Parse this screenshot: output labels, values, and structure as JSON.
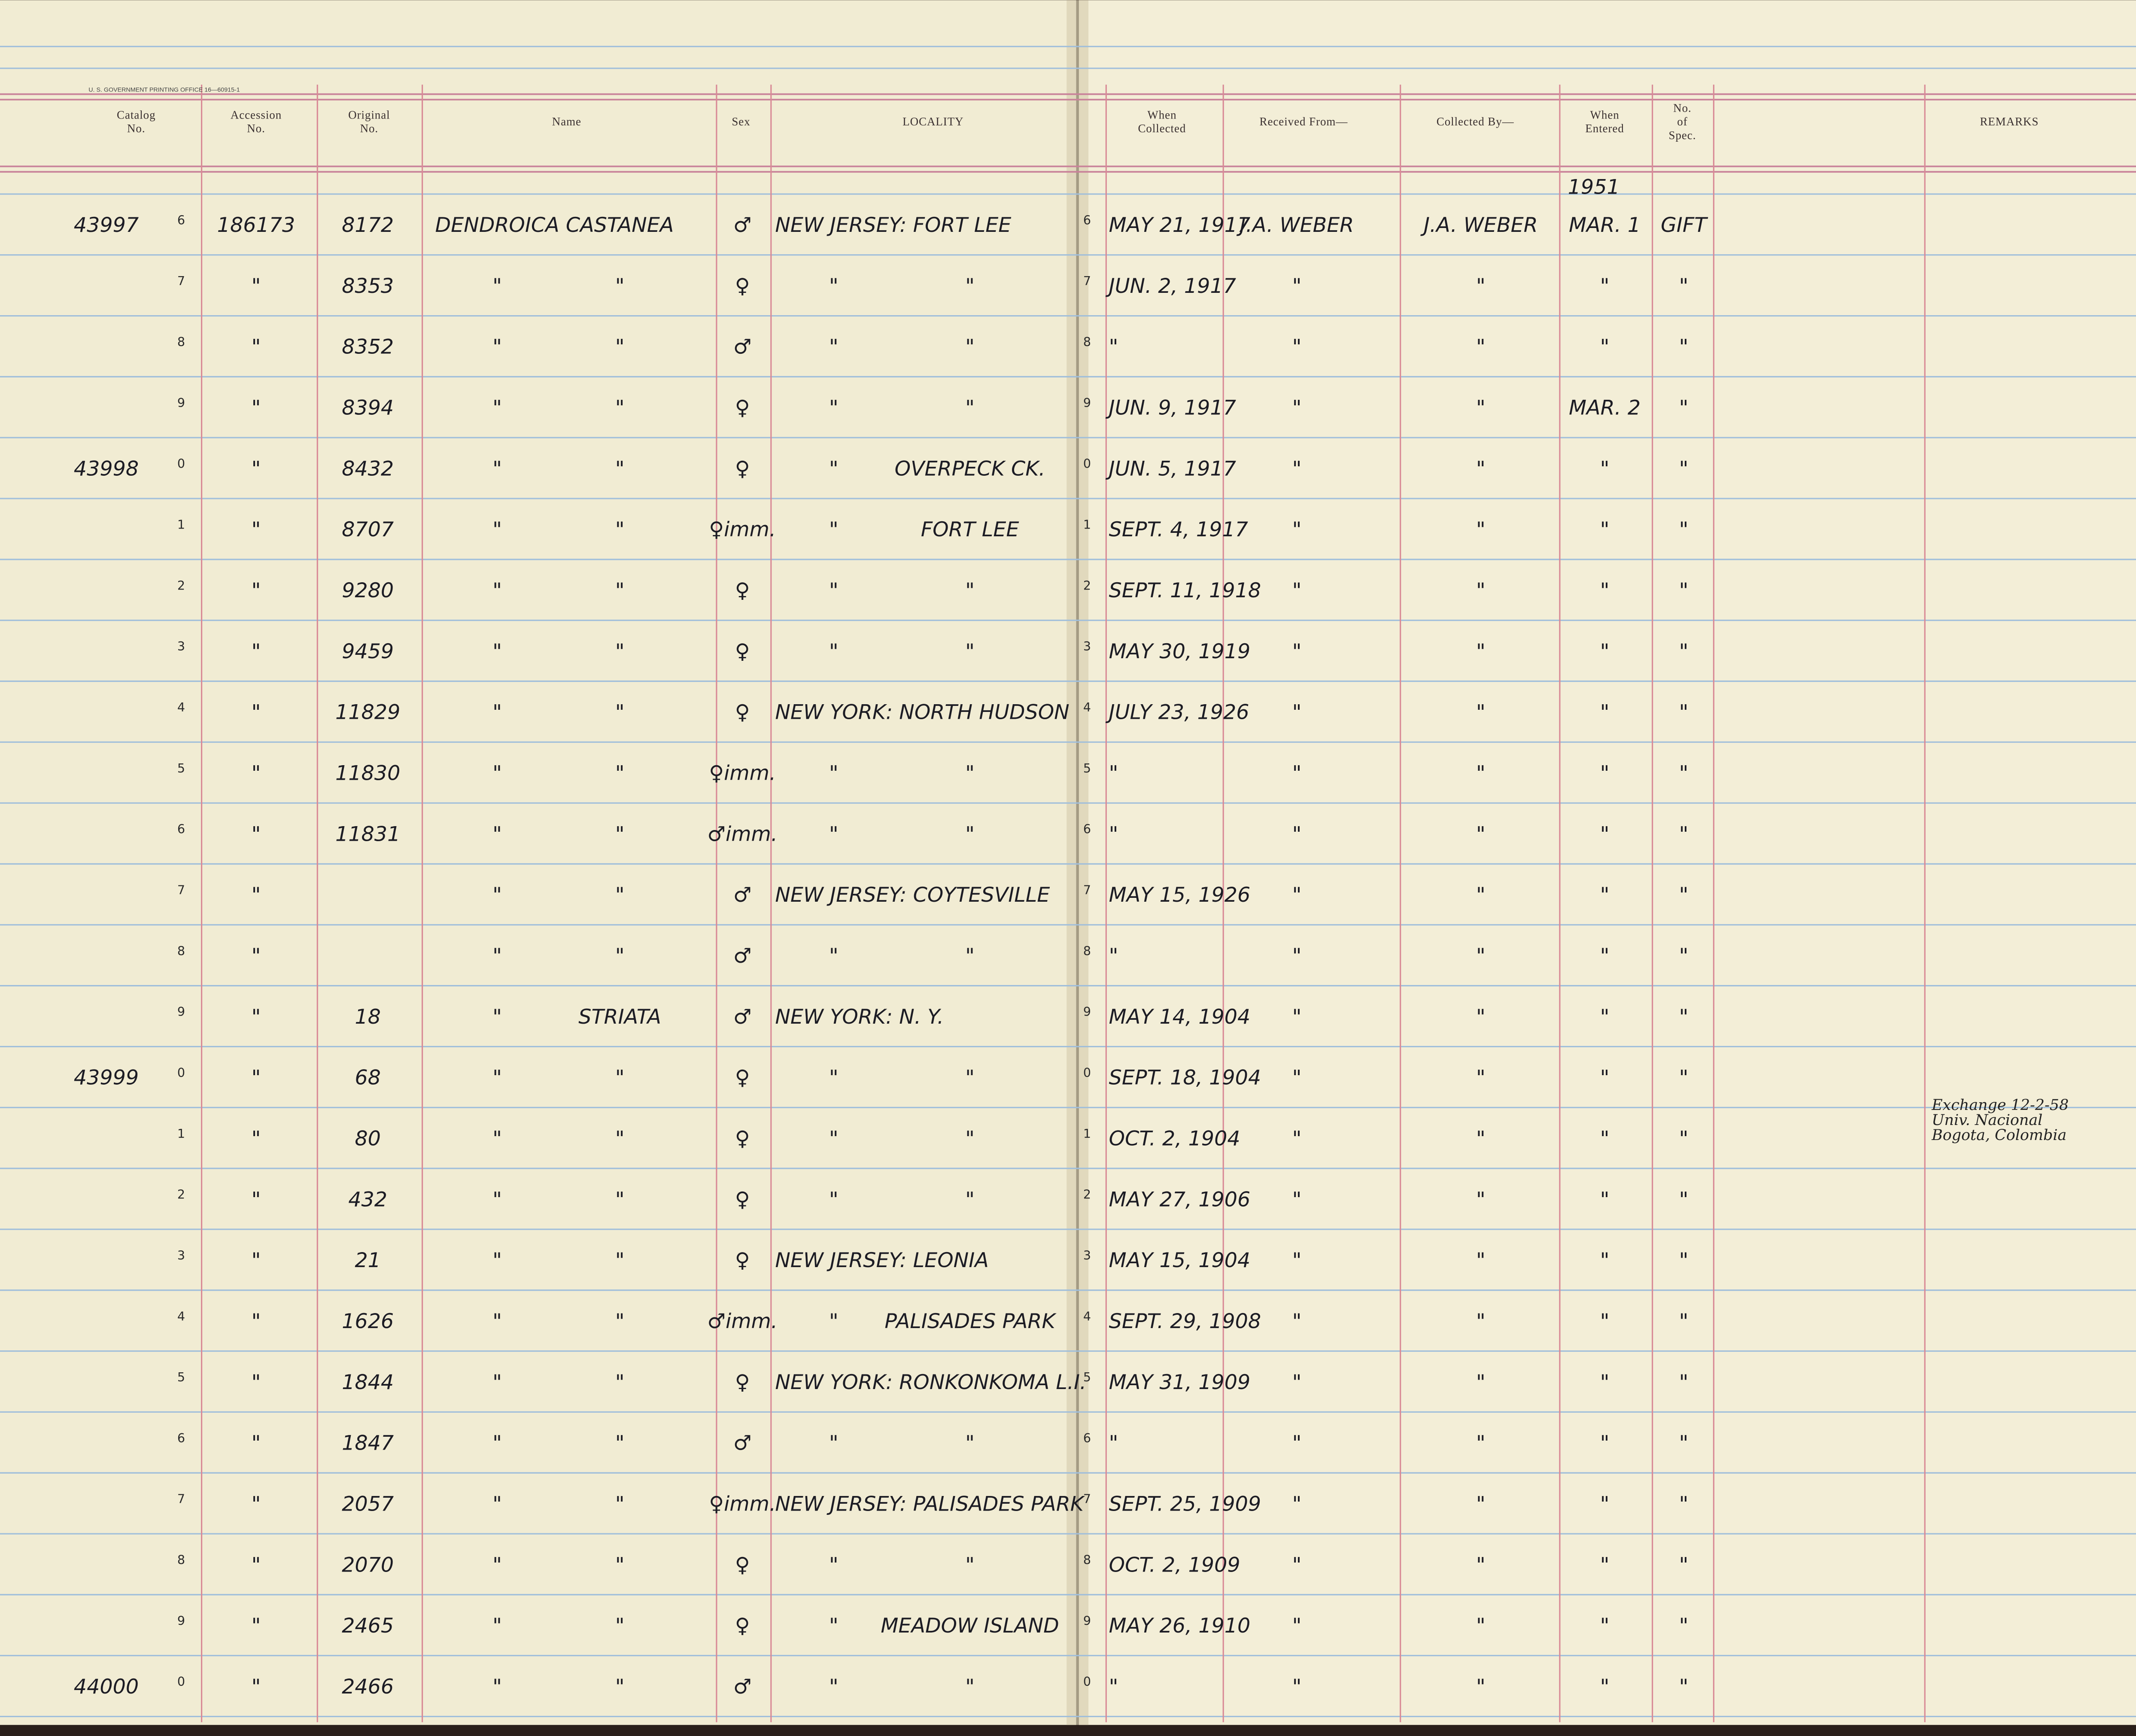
{
  "imprint": "U. S. GOVERNMENT PRINTING OFFICE  16—60915-1",
  "header": {
    "columns": [
      {
        "key": "catalog",
        "lines": [
          "Catalog",
          "No."
        ]
      },
      {
        "key": "accession",
        "lines": [
          "Accession",
          "No."
        ]
      },
      {
        "key": "original",
        "lines": [
          "Original",
          "No."
        ]
      },
      {
        "key": "name",
        "lines": [
          "Name"
        ]
      },
      {
        "key": "sex",
        "lines": [
          "Sex"
        ]
      },
      {
        "key": "locality",
        "lines": [
          "LOCALITY"
        ]
      },
      {
        "key": "collected",
        "lines": [
          "When",
          "Collected"
        ]
      },
      {
        "key": "received",
        "lines": [
          "Received From—"
        ]
      },
      {
        "key": "collected_by",
        "lines": [
          "Collected By—"
        ]
      },
      {
        "key": "entered",
        "lines": [
          "When",
          "Entered"
        ]
      },
      {
        "key": "spec",
        "lines": [
          "No.",
          "of",
          "Spec."
        ]
      },
      {
        "key": "remarks",
        "lines": [
          "REMARKS"
        ]
      }
    ]
  },
  "rows": [
    {
      "catalog": "43997",
      "num": "6",
      "accession": "186173",
      "original": "8172",
      "genus": "DENDROICA",
      "species": "CASTANEA",
      "sex": "♂",
      "loc": "NEW JERSEY: FORT LEE",
      "num2": "6",
      "collected": "MAY 21, 1917",
      "received": "J.A. WEBER",
      "collected_by": "J.A. WEBER",
      "entered_year": "1951",
      "entered": "MAR. 1",
      "spec": "GIFT"
    },
    {
      "num": "7",
      "accession": "\"",
      "original": "8353",
      "genus": "\"",
      "species": "\"",
      "sex": "♀",
      "loc_ditto": "\"",
      "loc2": "\"",
      "num2": "7",
      "collected": "JUN. 2, 1917",
      "received": "\"",
      "collected_by": "\"",
      "entered": "\"",
      "spec": "\""
    },
    {
      "num": "8",
      "accession": "\"",
      "original": "8352",
      "genus": "\"",
      "species": "\"",
      "sex": "♂",
      "loc_ditto": "\"",
      "loc2": "\"",
      "num2": "8",
      "collected": "\"",
      "received": "\"",
      "collected_by": "\"",
      "entered": "\"",
      "spec": "\""
    },
    {
      "num": "9",
      "accession": "\"",
      "original": "8394",
      "genus": "\"",
      "species": "\"",
      "sex": "♀",
      "loc_ditto": "\"",
      "loc2": "\"",
      "num2": "9",
      "collected": "JUN. 9, 1917",
      "received": "\"",
      "collected_by": "\"",
      "entered": "MAR. 2",
      "spec": "\""
    },
    {
      "catalog": "43998",
      "num": "0",
      "accession": "\"",
      "original": "8432",
      "genus": "\"",
      "species": "\"",
      "sex": "♀",
      "loc_ditto": "\"",
      "loc2": "OVERPECK CK.",
      "num2": "0",
      "collected": "JUN. 5, 1917",
      "received": "\"",
      "collected_by": "\"",
      "entered": "\"",
      "spec": "\""
    },
    {
      "num": "1",
      "accession": "\"",
      "original": "8707",
      "genus": "\"",
      "species": "\"",
      "sex": "♀imm.",
      "loc_ditto": "\"",
      "loc2": "FORT LEE",
      "num2": "1",
      "collected": "SEPT. 4, 1917",
      "received": "\"",
      "collected_by": "\"",
      "entered": "\"",
      "spec": "\""
    },
    {
      "num": "2",
      "accession": "\"",
      "original": "9280",
      "genus": "\"",
      "species": "\"",
      "sex": "♀",
      "loc_ditto": "\"",
      "loc2": "\"",
      "num2": "2",
      "collected": "SEPT. 11, 1918",
      "received": "\"",
      "collected_by": "\"",
      "entered": "\"",
      "spec": "\""
    },
    {
      "num": "3",
      "accession": "\"",
      "original": "9459",
      "genus": "\"",
      "species": "\"",
      "sex": "♀",
      "loc_ditto": "\"",
      "loc2": "\"",
      "num2": "3",
      "collected": "MAY 30, 1919",
      "received": "\"",
      "collected_by": "\"",
      "entered": "\"",
      "spec": "\""
    },
    {
      "num": "4",
      "accession": "\"",
      "original": "11829",
      "genus": "\"",
      "species": "\"",
      "sex": "♀",
      "loc": "NEW YORK: NORTH HUDSON",
      "num2": "4",
      "collected": "JULY 23, 1926",
      "received": "\"",
      "collected_by": "\"",
      "entered": "\"",
      "spec": "\""
    },
    {
      "num": "5",
      "accession": "\"",
      "original": "11830",
      "genus": "\"",
      "species": "\"",
      "sex": "♀imm.",
      "loc_ditto": "\"",
      "loc2": "\"",
      "num2": "5",
      "collected": "\"",
      "received": "\"",
      "collected_by": "\"",
      "entered": "\"",
      "spec": "\""
    },
    {
      "num": "6",
      "accession": "\"",
      "original": "11831",
      "genus": "\"",
      "species": "\"",
      "sex": "♂imm.",
      "loc_ditto": "\"",
      "loc2": "\"",
      "num2": "6",
      "collected": "\"",
      "received": "\"",
      "collected_by": "\"",
      "entered": "\"",
      "spec": "\""
    },
    {
      "num": "7",
      "accession": "\"",
      "genus": "\"",
      "species": "\"",
      "sex": "♂",
      "loc": "NEW JERSEY: COYTESVILLE",
      "num2": "7",
      "collected": "MAY 15, 1926",
      "received": "\"",
      "collected_by": "\"",
      "entered": "\"",
      "spec": "\""
    },
    {
      "num": "8",
      "accession": "\"",
      "genus": "\"",
      "species": "\"",
      "sex": "♂",
      "loc_ditto": "\"",
      "loc2": "\"",
      "num2": "8",
      "collected": "\"",
      "received": "\"",
      "collected_by": "\"",
      "entered": "\"",
      "spec": "\""
    },
    {
      "num": "9",
      "accession": "\"",
      "original": "18",
      "genus": "\"",
      "species": "STRIATA",
      "sex": "♂",
      "loc": "NEW YORK: N. Y.",
      "num2": "9",
      "collected": "MAY 14, 1904",
      "received": "\"",
      "collected_by": "\"",
      "entered": "\"",
      "spec": "\""
    },
    {
      "catalog": "43999",
      "num": "0",
      "accession": "\"",
      "original": "68",
      "genus": "\"",
      "species": "\"",
      "sex": "♀",
      "loc_ditto": "\"",
      "loc2": "\"",
      "num2": "0",
      "collected": "SEPT. 18, 1904",
      "received": "\"",
      "collected_by": "\"",
      "entered": "\"",
      "spec": "\"",
      "remarks": [
        "Exchange 12-2-58",
        "Univ. Nacional",
        "Bogota, Colombia"
      ]
    },
    {
      "num": "1",
      "accession": "\"",
      "original": "80",
      "genus": "\"",
      "species": "\"",
      "sex": "♀",
      "loc_ditto": "\"",
      "loc2": "\"",
      "num2": "1",
      "collected": "OCT. 2, 1904",
      "received": "\"",
      "collected_by": "\"",
      "entered": "\"",
      "spec": "\""
    },
    {
      "num": "2",
      "accession": "\"",
      "original": "432",
      "genus": "\"",
      "species": "\"",
      "sex": "♀",
      "loc_ditto": "\"",
      "loc2": "\"",
      "num2": "2",
      "collected": "MAY 27, 1906",
      "received": "\"",
      "collected_by": "\"",
      "entered": "\"",
      "spec": "\""
    },
    {
      "num": "3",
      "accession": "\"",
      "original": "21",
      "genus": "\"",
      "species": "\"",
      "sex": "♀",
      "loc": "NEW JERSEY: LEONIA",
      "num2": "3",
      "collected": "MAY 15, 1904",
      "received": "\"",
      "collected_by": "\"",
      "entered": "\"",
      "spec": "\""
    },
    {
      "num": "4",
      "accession": "\"",
      "original": "1626",
      "genus": "\"",
      "species": "\"",
      "sex": "♂imm.",
      "loc_ditto": "\"",
      "loc2": "PALISADES PARK",
      "num2": "4",
      "collected": "SEPT. 29, 1908",
      "received": "\"",
      "collected_by": "\"",
      "entered": "\"",
      "spec": "\""
    },
    {
      "num": "5",
      "accession": "\"",
      "original": "1844",
      "genus": "\"",
      "species": "\"",
      "sex": "♀",
      "loc": "NEW YORK: RONKONKOMA L.I.",
      "num2": "5",
      "collected": "MAY 31, 1909",
      "received": "\"",
      "collected_by": "\"",
      "entered": "\"",
      "spec": "\""
    },
    {
      "num": "6",
      "accession": "\"",
      "original": "1847",
      "genus": "\"",
      "species": "\"",
      "sex": "♂",
      "loc_ditto": "\"",
      "loc2": "\"",
      "num2": "6",
      "collected": "\"",
      "received": "\"",
      "collected_by": "\"",
      "entered": "\"",
      "spec": "\""
    },
    {
      "num": "7",
      "accession": "\"",
      "original": "2057",
      "genus": "\"",
      "species": "\"",
      "sex": "♀imm.",
      "loc": "NEW JERSEY: PALISADES PARK",
      "num2": "7",
      "collected": "SEPT. 25, 1909",
      "received": "\"",
      "collected_by": "\"",
      "entered": "\"",
      "spec": "\""
    },
    {
      "num": "8",
      "accession": "\"",
      "original": "2070",
      "genus": "\"",
      "species": "\"",
      "sex": "♀",
      "loc_ditto": "\"",
      "loc2": "\"",
      "num2": "8",
      "collected": "OCT. 2, 1909",
      "received": "\"",
      "collected_by": "\"",
      "entered": "\"",
      "spec": "\""
    },
    {
      "num": "9",
      "accession": "\"",
      "original": "2465",
      "genus": "\"",
      "species": "\"",
      "sex": "♀",
      "loc_ditto": "\"",
      "loc2": "MEADOW ISLAND",
      "num2": "9",
      "collected": "MAY 26, 1910",
      "received": "\"",
      "collected_by": "\"",
      "entered": "\"",
      "spec": "\""
    },
    {
      "catalog": "44000",
      "num": "0",
      "accession": "\"",
      "original": "2466",
      "genus": "\"",
      "species": "\"",
      "sex": "♂",
      "loc_ditto": "\"",
      "loc2": "\"",
      "num2": "0",
      "collected": "\"",
      "received": "\"",
      "collected_by": "\"",
      "entered": "\"",
      "spec": "\""
    }
  ]
}
